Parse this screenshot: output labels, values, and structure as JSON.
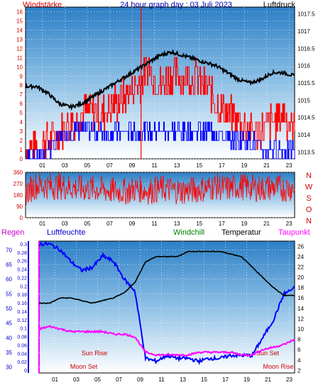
{
  "chart_data": [
    {
      "type": "line",
      "title": "24 hour graph day : 03 Juli 2023",
      "left_axis_label": "Windstärke",
      "right_axis_label": "Luftdruck",
      "left_ticks": [
        "0",
        "1",
        "2",
        "3",
        "4",
        "5",
        "6",
        "7",
        "8",
        "9",
        "10",
        "11",
        "12",
        "13",
        "14",
        "15",
        "16"
      ],
      "right_ticks": [
        "1013.5",
        "1014",
        "1014.5",
        "1015",
        "1015.5",
        "1016",
        "1016.5",
        "1017",
        "1017.5"
      ],
      "x_ticks": [
        "01",
        "03",
        "05",
        "07",
        "09",
        "11",
        "13",
        "15",
        "17",
        "19",
        "21",
        "23"
      ],
      "ylim_left": [
        0,
        16.5
      ],
      "ylim_right": [
        1013.3,
        1017.7
      ],
      "series": [
        {
          "name": "Windstärke",
          "color": "#ff0000",
          "x": [
            0,
            1,
            2,
            3,
            4,
            5,
            6,
            7,
            8,
            9,
            10,
            11,
            12,
            13,
            14,
            15,
            16,
            17,
            18,
            19,
            20,
            21,
            22,
            23,
            24
          ],
          "values": [
            1,
            1,
            2,
            3,
            4,
            5,
            5,
            5,
            6,
            7,
            8,
            10,
            8,
            9,
            9,
            9,
            8,
            6,
            5,
            4,
            3,
            3,
            4,
            5,
            3
          ]
        },
        {
          "name": "Windstärke (mean)",
          "color": "#0000ff",
          "x": [
            0,
            1,
            2,
            3,
            4,
            5,
            6,
            7,
            8,
            9,
            10,
            11,
            12,
            13,
            14,
            15,
            16,
            17,
            18,
            19,
            20,
            21,
            22,
            23,
            24
          ],
          "values": [
            0,
            0,
            1,
            2,
            3,
            3,
            3,
            3,
            3,
            3,
            3,
            3,
            3,
            3,
            3,
            3,
            3,
            3,
            2,
            2,
            2,
            1,
            1,
            1,
            1
          ]
        },
        {
          "name": "Luftdruck",
          "color": "#000000",
          "x": [
            0,
            1,
            2,
            3,
            4,
            5,
            6,
            7,
            8,
            9,
            10,
            11,
            12,
            13,
            14,
            15,
            16,
            17,
            18,
            19,
            20,
            21,
            22,
            23,
            24
          ],
          "values": [
            1015.4,
            1015.4,
            1015.2,
            1014.9,
            1014.8,
            1014.9,
            1015.1,
            1015.3,
            1015.5,
            1015.7,
            1015.9,
            1016.1,
            1016.3,
            1016.4,
            1016.3,
            1016.2,
            1016.1,
            1016.0,
            1015.8,
            1015.6,
            1015.5,
            1015.6,
            1015.8,
            1015.8,
            1015.7
          ]
        }
      ]
    },
    {
      "type": "line",
      "title": "",
      "left_ticks": [
        "0",
        "90",
        "180",
        "270",
        "360"
      ],
      "right_ticks": [
        "N",
        "W",
        "S",
        "O",
        "N"
      ],
      "x_ticks": [
        "01",
        "03",
        "05",
        "07",
        "09",
        "11",
        "13",
        "15",
        "17",
        "19",
        "21",
        "23"
      ],
      "ylim": [
        0,
        360
      ],
      "series": [
        {
          "name": "Windrichtung",
          "color": "#ff0000",
          "x": [
            0,
            1,
            2,
            3,
            4,
            5,
            6,
            7,
            8,
            9,
            10,
            11,
            12,
            13,
            14,
            15,
            16,
            17,
            18,
            19,
            20,
            21,
            22,
            23,
            24
          ],
          "values": [
            200,
            260,
            250,
            250,
            240,
            230,
            230,
            220,
            210,
            210,
            230,
            210,
            230,
            220,
            210,
            220,
            230,
            250,
            230,
            250,
            240,
            230,
            240,
            230,
            240
          ]
        }
      ]
    },
    {
      "type": "line",
      "title": "",
      "left_axis_labels": [
        "Regen",
        "Luftfeuchte"
      ],
      "right_axis_labels": [
        "Windchill",
        "Temperatur",
        "Taupunkt"
      ],
      "rain_ticks": [
        "0",
        "0.02",
        "0.04",
        "0.06",
        "0.08",
        "0.1",
        "0.12",
        "0.14",
        "0.16",
        "0.18",
        "0.2",
        "0.22",
        "0.24",
        "0.26",
        "0.28",
        "0.3"
      ],
      "humidity_ticks": [
        "30",
        "35",
        "40",
        "45",
        "50",
        "55",
        "60",
        "65",
        "70"
      ],
      "temperature_ticks": [
        "2",
        "4",
        "6",
        "8",
        "10",
        "12",
        "14",
        "16",
        "18",
        "20",
        "22",
        "24",
        "26"
      ],
      "x_ticks": [
        "01",
        "03",
        "05",
        "07",
        "09",
        "11",
        "13",
        "15",
        "17",
        "19",
        "21",
        "23"
      ],
      "ylim_humidity": [
        28,
        73
      ],
      "ylim_temperature": [
        1.5,
        27
      ],
      "annotations": [
        "Sun Rise",
        "Moon Set",
        "Sun Set",
        "Moon Rise"
      ],
      "series": [
        {
          "name": "Luftfeuchte",
          "color": "#0000ff",
          "x": [
            0,
            1,
            2,
            3,
            4,
            5,
            6,
            7,
            8,
            9,
            10,
            11,
            12,
            13,
            14,
            15,
            16,
            17,
            18,
            19,
            20,
            21,
            22,
            23,
            24
          ],
          "values": [
            72,
            72,
            70,
            66,
            63,
            64,
            68,
            66,
            60,
            56,
            33,
            32,
            34,
            33,
            33,
            32,
            33,
            33,
            34,
            34,
            34,
            40,
            46,
            55,
            57
          ]
        },
        {
          "name": "Temperatur",
          "color": "#000000",
          "x": [
            0,
            1,
            2,
            3,
            4,
            5,
            6,
            7,
            8,
            9,
            10,
            11,
            12,
            13,
            14,
            15,
            16,
            17,
            18,
            19,
            20,
            21,
            22,
            23,
            24
          ],
          "values": [
            15,
            15,
            16,
            16,
            15.5,
            15,
            15.5,
            16,
            17,
            19,
            23,
            24,
            24,
            24,
            25,
            25,
            25,
            25,
            24.5,
            24,
            22,
            20,
            18,
            16.5,
            16.5
          ]
        },
        {
          "name": "Taupunkt",
          "color": "#ff00ff",
          "x": [
            0,
            1,
            2,
            3,
            4,
            5,
            6,
            7,
            8,
            9,
            10,
            11,
            12,
            13,
            14,
            15,
            16,
            17,
            18,
            19,
            20,
            21,
            22,
            23,
            24
          ],
          "values": [
            10,
            10.5,
            10,
            9.5,
            9.5,
            9.5,
            9.5,
            9,
            9,
            8.5,
            5.5,
            5,
            5,
            5,
            5,
            5.5,
            5.5,
            5.5,
            5.5,
            5,
            5,
            6,
            6.5,
            7,
            8
          ]
        },
        {
          "name": "Windchill",
          "color": "#008000",
          "x": [
            0,
            1,
            2,
            3,
            4,
            5,
            6,
            7,
            8,
            9,
            10,
            11,
            12,
            13,
            14,
            15,
            16,
            17,
            18,
            19,
            20,
            21,
            22,
            23,
            24
          ],
          "values": [
            15,
            15,
            16,
            16,
            15.5,
            15,
            15.5,
            16,
            17,
            19,
            23,
            24,
            24,
            24,
            25,
            25,
            25,
            25,
            24.5,
            24,
            22,
            20,
            18,
            16.5,
            16.5
          ]
        }
      ]
    }
  ]
}
